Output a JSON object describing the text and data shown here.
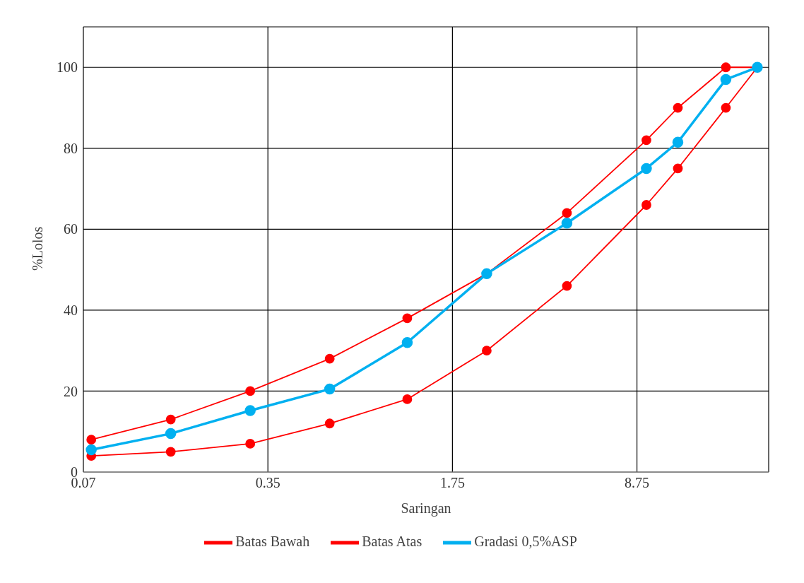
{
  "chart_data": {
    "type": "line",
    "xlabel": "Saringan",
    "ylabel": "%Lolos",
    "log": "x",
    "x": [
      0.075,
      0.15,
      0.3,
      0.6,
      1.18,
      2.36,
      4.75,
      9.5,
      12.5,
      19,
      25
    ],
    "xlim": [
      0.07,
      27.6
    ],
    "xticks": [
      0.07,
      0.35,
      1.75,
      8.75
    ],
    "ylim": [
      0,
      110
    ],
    "yticks": [
      0,
      20,
      40,
      60,
      80,
      100
    ],
    "grid": true,
    "legend": "bottom",
    "marker": "circle",
    "line_style": "solid",
    "series": [
      {
        "name": "Batas Bawah",
        "color": "#ff0000",
        "values": [
          4,
          5,
          7,
          12,
          18,
          30,
          46,
          66,
          75,
          90,
          100
        ]
      },
      {
        "name": "Batas Atas",
        "color": "#ff0000",
        "values": [
          8,
          13,
          20,
          28,
          38,
          49,
          64,
          82,
          90,
          100,
          100
        ]
      },
      {
        "name": "Gradasi 0,5%ASP",
        "color": "#00b0f0",
        "values": [
          5.5,
          9.5,
          15.2,
          20.5,
          32,
          49,
          61.5,
          75,
          81.5,
          97,
          100
        ]
      }
    ]
  }
}
